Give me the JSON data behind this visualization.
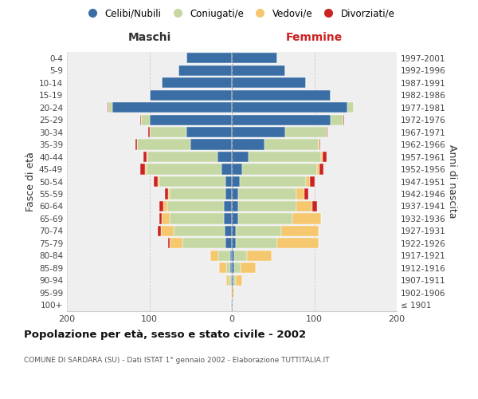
{
  "age_groups": [
    "100+",
    "95-99",
    "90-94",
    "85-89",
    "80-84",
    "75-79",
    "70-74",
    "65-69",
    "60-64",
    "55-59",
    "50-54",
    "45-49",
    "40-44",
    "35-39",
    "30-34",
    "25-29",
    "20-24",
    "15-19",
    "10-14",
    "5-9",
    "0-4"
  ],
  "birth_years": [
    "≤ 1901",
    "1902-1906",
    "1907-1911",
    "1912-1916",
    "1917-1921",
    "1922-1926",
    "1927-1931",
    "1932-1936",
    "1937-1941",
    "1942-1946",
    "1947-1951",
    "1952-1956",
    "1957-1961",
    "1962-1966",
    "1967-1971",
    "1972-1976",
    "1977-1981",
    "1982-1986",
    "1987-1991",
    "1992-1996",
    "1997-2001"
  ],
  "maschi": {
    "celibi": [
      1,
      0,
      1,
      2,
      2,
      8,
      9,
      10,
      10,
      8,
      8,
      13,
      17,
      50,
      55,
      100,
      145,
      100,
      85,
      65,
      55
    ],
    "coniugati": [
      0,
      0,
      3,
      5,
      14,
      52,
      62,
      65,
      68,
      67,
      80,
      90,
      85,
      65,
      45,
      10,
      5,
      0,
      0,
      0,
      0
    ],
    "vedovi": [
      0,
      1,
      3,
      8,
      10,
      15,
      15,
      10,
      5,
      2,
      2,
      2,
      1,
      0,
      0,
      0,
      0,
      0,
      0,
      0,
      0
    ],
    "divorziati": [
      0,
      0,
      0,
      0,
      0,
      2,
      4,
      3,
      5,
      4,
      5,
      6,
      4,
      2,
      1,
      1,
      1,
      0,
      0,
      0,
      0
    ]
  },
  "femmine": {
    "nubili": [
      1,
      1,
      2,
      3,
      3,
      5,
      5,
      8,
      8,
      8,
      10,
      13,
      20,
      40,
      65,
      120,
      140,
      120,
      90,
      65,
      55
    ],
    "coniugate": [
      0,
      0,
      3,
      8,
      15,
      50,
      55,
      65,
      70,
      70,
      80,
      90,
      88,
      65,
      50,
      15,
      8,
      0,
      0,
      0,
      0
    ],
    "vedove": [
      0,
      2,
      8,
      18,
      30,
      50,
      45,
      35,
      20,
      10,
      5,
      3,
      2,
      1,
      0,
      0,
      0,
      0,
      0,
      0,
      0
    ],
    "divorziate": [
      0,
      0,
      0,
      0,
      0,
      0,
      0,
      0,
      5,
      5,
      5,
      5,
      5,
      1,
      1,
      1,
      0,
      0,
      0,
      0,
      0
    ]
  },
  "colors": {
    "celibi": "#3a6ea5",
    "coniugati": "#c5d8a4",
    "vedovi": "#f5c76e",
    "divorziati": "#cc2222"
  },
  "xlim": 200,
  "title": "Popolazione per età, sesso e stato civile - 2002",
  "subtitle": "COMUNE DI SARDARA (SU) - Dati ISTAT 1° gennaio 2002 - Elaborazione TUTTITALIA.IT",
  "ylabel_left": "Fasce di età",
  "ylabel_right": "Anni di nascita",
  "xlabel_maschi": "Maschi",
  "xlabel_femmine": "Femmine",
  "legend_labels": [
    "Celibi/Nubili",
    "Coniugati/e",
    "Vedovi/e",
    "Divorziati/e"
  ],
  "bg_color": "#ffffff",
  "plot_bg_color": "#efefef"
}
